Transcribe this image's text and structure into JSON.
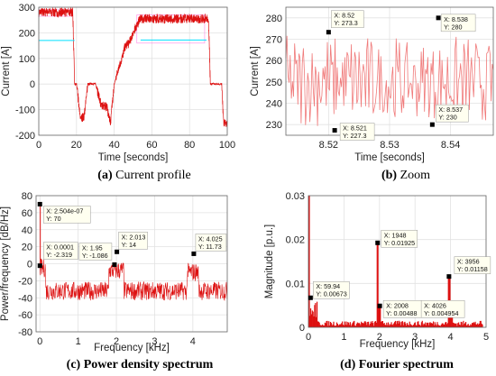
{
  "colors": {
    "signal": "#dd1111",
    "signal_light": "#f07a7a",
    "envelope": "#ff66dd",
    "marker": "#000000",
    "box_fill": "#fffff0"
  },
  "captions": [
    {
      "label": "(a)",
      "text": "Current profile"
    },
    {
      "label": "(b)",
      "text": "Zoom"
    },
    {
      "label": "(c)",
      "text": "Power density spectrum"
    },
    {
      "label": "(d)",
      "text": "Fourier spectrum"
    }
  ],
  "chart_data": [
    {
      "id": "a",
      "type": "line",
      "xlabel": "Time [seconds]",
      "ylabel": "Current [A]",
      "xlim": [
        0,
        100
      ],
      "ylim": [
        -200,
        300
      ],
      "xticks": [
        "0",
        "20",
        "40",
        "60",
        "80",
        "100"
      ],
      "yticks": [
        "-200",
        "-100",
        "0",
        "100",
        "200",
        "300"
      ],
      "grid": true,
      "x": [
        0,
        18,
        19,
        20,
        22,
        24,
        26,
        28,
        30,
        33,
        36,
        38,
        40,
        42,
        44,
        46,
        48,
        50,
        52,
        54,
        56,
        60,
        70,
        80,
        88,
        90,
        91,
        97,
        98,
        100
      ],
      "y": [
        280,
        280,
        0,
        0,
        -130,
        -130,
        0,
        0,
        0,
        -80,
        -90,
        -150,
        0,
        50,
        100,
        150,
        160,
        200,
        230,
        255,
        255,
        255,
        255,
        255,
        255,
        255,
        0,
        0,
        -150,
        -150
      ]
    },
    {
      "id": "b",
      "type": "line",
      "xlabel": "Time [seconds]",
      "ylabel": "Current [A]",
      "xlim": [
        8.513,
        8.547
      ],
      "ylim": [
        225,
        285
      ],
      "xticks": [
        "8.52",
        "8.53",
        "8.54"
      ],
      "yticks": [
        "230",
        "240",
        "250",
        "260",
        "270",
        "280"
      ],
      "grid": true,
      "series_mean": 250,
      "datatips": [
        {
          "x": 8.52,
          "y": 273.3,
          "lines": [
            "X: 8.52",
            "Y: 273.3"
          ]
        },
        {
          "x": 8.521,
          "y": 227.3,
          "lines": [
            "X: 8.521",
            "Y: 227.3"
          ]
        },
        {
          "x": 8.538,
          "y": 280,
          "lines": [
            "X: 8.538",
            "Y: 280"
          ]
        },
        {
          "x": 8.537,
          "y": 230,
          "lines": [
            "X: 8.537",
            "Y: 230"
          ]
        }
      ]
    },
    {
      "id": "c",
      "type": "line",
      "xlabel": "Frequency [kHz]",
      "ylabel": "Power/frequency [dB/Hz]",
      "xlim": [
        -0.1,
        4.9
      ],
      "ylim": [
        -80,
        80
      ],
      "xticks": [
        "0",
        "1",
        "2",
        "3",
        "4"
      ],
      "yticks": [
        "-80",
        "-60",
        "-40",
        "-20",
        "0",
        "20",
        "40",
        "60",
        "80"
      ],
      "grid": true,
      "datatips": [
        {
          "x": 0.0,
          "y": 70,
          "lines": [
            "X: 2.504e-07",
            "Y: 70"
          ]
        },
        {
          "x": 0.0001,
          "y": -2.319,
          "lines": [
            "X: 0.0001",
            "Y: -2.319"
          ]
        },
        {
          "x": 1.95,
          "y": -1.086,
          "lines": [
            "X: 1.95",
            "Y: -1.086"
          ]
        },
        {
          "x": 2.013,
          "y": 14,
          "lines": [
            "X: 2.013",
            "Y: 14"
          ]
        },
        {
          "x": 4.025,
          "y": 11.73,
          "lines": [
            "X: 4.025",
            "Y: 11.73"
          ]
        }
      ]
    },
    {
      "id": "d",
      "type": "bar",
      "xlabel": "Frequency [kHz]",
      "ylabel": "Magnitude [p.u.]",
      "xlim": [
        0,
        5
      ],
      "ylim": [
        0,
        0.03
      ],
      "xticks": [
        "0",
        "1",
        "2",
        "3",
        "4",
        "5"
      ],
      "yticks": [
        "0",
        "0.01",
        "0.02",
        "0.03"
      ],
      "grid": true,
      "datatips": [
        {
          "x": 0.05994,
          "y": 0.00673,
          "lines": [
            "X: 59.94",
            "Y: 0.00673"
          ]
        },
        {
          "x": 1.948,
          "y": 0.01925,
          "lines": [
            "X: 1948",
            "Y: 0.01925"
          ]
        },
        {
          "x": 2.008,
          "y": 0.00488,
          "lines": [
            "X: 2008",
            "Y: 0.00488"
          ]
        },
        {
          "x": 4.026,
          "y": 0.004954,
          "lines": [
            "X: 4026",
            "Y: 0.004954"
          ]
        },
        {
          "x": 3.956,
          "y": 0.01158,
          "lines": [
            "X: 3956",
            "Y: 0.01158"
          ]
        }
      ]
    }
  ]
}
